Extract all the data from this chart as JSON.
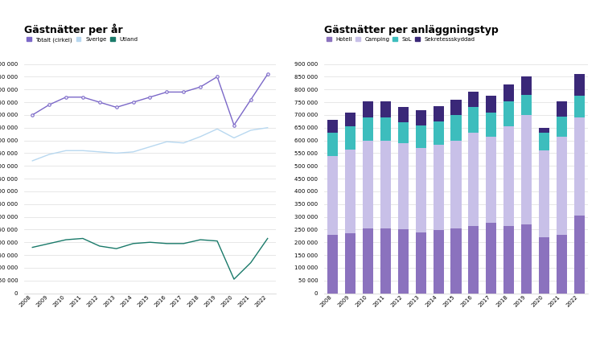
{
  "years": [
    2008,
    2009,
    2010,
    2011,
    2012,
    2013,
    2014,
    2015,
    2016,
    2017,
    2018,
    2019,
    2020,
    2021,
    2022
  ],
  "totalt": [
    700000,
    740000,
    770000,
    770000,
    750000,
    730000,
    750000,
    770000,
    790000,
    790000,
    810000,
    850000,
    660000,
    760000,
    860000
  ],
  "sverige": [
    520000,
    545000,
    560000,
    560000,
    555000,
    550000,
    555000,
    575000,
    595000,
    590000,
    615000,
    645000,
    610000,
    640000,
    650000
  ],
  "utland": [
    180000,
    195000,
    210000,
    215000,
    185000,
    175000,
    195000,
    200000,
    195000,
    195000,
    210000,
    205000,
    55000,
    120000,
    215000
  ],
  "hotell": [
    230000,
    235000,
    255000,
    255000,
    250000,
    240000,
    248000,
    255000,
    265000,
    275000,
    265000,
    270000,
    220000,
    230000,
    305000
  ],
  "camping": [
    310000,
    330000,
    345000,
    345000,
    340000,
    330000,
    335000,
    345000,
    365000,
    340000,
    390000,
    430000,
    340000,
    385000,
    385000
  ],
  "sol": [
    90000,
    90000,
    90000,
    90000,
    80000,
    90000,
    90000,
    100000,
    100000,
    95000,
    100000,
    80000,
    70000,
    80000,
    85000
  ],
  "sekretess": [
    50000,
    55000,
    65000,
    65000,
    60000,
    60000,
    60000,
    60000,
    60000,
    65000,
    65000,
    70000,
    20000,
    60000,
    85000
  ],
  "title_left": "Gästnätter per år",
  "title_right": "Gästnätter per anläggningstyp",
  "legend_left": [
    "Totalt (cirkel)",
    "Sverige",
    "Utland"
  ],
  "legend_right": [
    "Hotell",
    "Camping",
    "SoL",
    "Sekretessskyddad"
  ],
  "color_totalt": "#7B68C8",
  "color_sverige": "#B8D8F0",
  "color_utland": "#1A7A6A",
  "color_hotell": "#8B72BE",
  "color_camping": "#C8C0E8",
  "color_sol": "#3DBDBD",
  "color_sekretess": "#3A2878",
  "bg_color": "#ffffff",
  "ylim": [
    0,
    900000
  ]
}
